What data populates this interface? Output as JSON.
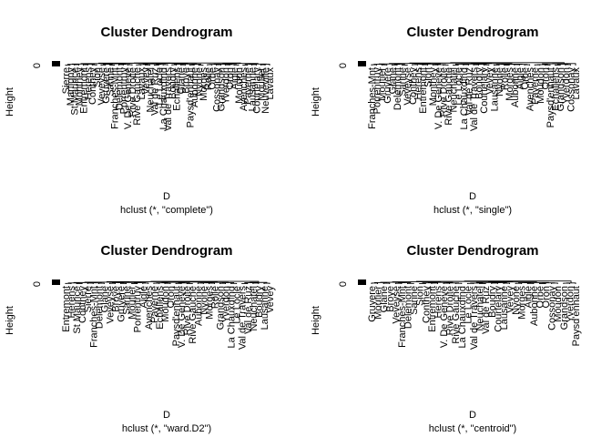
{
  "chart_data": [
    {
      "type": "dendrogram",
      "title": "Cluster Dendrogram",
      "xlabel": "D",
      "sub": "hclust (*, \"complete\")",
      "ylabel": "Height",
      "yticks": [
        "0"
      ],
      "labels": [
        "Sierre",
        "Martigny",
        "St Maurice",
        "Monthey",
        "Entremont",
        "Herens",
        "Conthey",
        "Sion",
        "Veveyse",
        "Gruyere",
        "Sarine",
        "Franches-Mnt",
        "Delemont",
        "Porrentruy",
        "V. De Geneve",
        "Rive Droite",
        "Rive Gauche",
        "Lavaux",
        "Vevey",
        "Neuchatel",
        "Val de Ruz",
        "Le Locle",
        "La Chauxdfnd",
        "Val de Travers",
        "Boudry",
        "Echallens",
        "Glane",
        "Broye",
        "Paysd'enhaut",
        "Aubonne",
        "Nyone",
        "Morges",
        "Rolle",
        "Orbe",
        "Cossonay",
        "Grandson",
        "Yverdon",
        "Oron",
        "Aigle",
        "Moudon",
        "Avenches",
        "Payerne",
        "Lausanne",
        "Courtelary",
        "Moutier",
        "Neuveville",
        "Lavaux"
      ]
    },
    {
      "type": "dendrogram",
      "title": "Cluster Dendrogram",
      "xlabel": "D",
      "sub": "hclust (*, \"single\")",
      "ylabel": "Height",
      "yticks": [
        "0"
      ],
      "labels": [
        "Franches-Mnt",
        "Porrentruy",
        "Moutier",
        "Gruyere",
        "Glane",
        "Delemont",
        "Sarine",
        "Veveyse",
        "Conthey",
        "Herens",
        "Entremont",
        "Sion",
        "Monthey",
        "V. De Geneve",
        "Rive Droite",
        "Rive Gauche",
        "Neuchatel",
        "Le Locle",
        "La Chauxdfnd",
        "Val de Ruz",
        "Val de Travers",
        "Boudry",
        "Courtelary",
        "Vevey",
        "Lausanne",
        "Nyone",
        "Rolle",
        "Morges",
        "Aubonne",
        "Aigle",
        "Orbe",
        "Avenches",
        "Payerne",
        "Moudon",
        "Oron",
        "Paysd'enhaut",
        "Echallens",
        "Grandson",
        "Yverdon",
        "Cossonay",
        "Lavaux"
      ]
    },
    {
      "type": "dendrogram",
      "title": "Cluster Dendrogram",
      "xlabel": "D",
      "sub": "hclust (*, \"ward.D2\")",
      "ylabel": "Height",
      "yticks": [
        "0"
      ],
      "labels": [
        "Entremont",
        "Herens",
        "St Maurice",
        "Conthey",
        "Sierre",
        "Franches-Mnt",
        "Delemont",
        "Glane",
        "Veveyse",
        "Broye",
        "Gruyere",
        "Sarine",
        "Moutier",
        "Porrentruy",
        "Aigle",
        "Avenches",
        "Payerne",
        "Echallens",
        "Moudon",
        "Oron",
        "Paysd'enhaut",
        "V. De Geneve",
        "Rive Droite",
        "Rive Gauche",
        "Aubonne",
        "Nyone",
        "Morges",
        "Rolle",
        "Grandson",
        "Yverdon",
        "La Chauxdfnd",
        "Le Locle",
        "Val de Travers",
        "Val de Ruz",
        "Neuchatel",
        "Boudry",
        "Lausanne",
        "Vevey"
      ]
    },
    {
      "type": "dendrogram",
      "title": "Cluster Dendrogram",
      "xlabel": "D",
      "sub": "hclust (*, \"centroid\")",
      "ylabel": "Height",
      "yticks": [
        "0"
      ],
      "labels": [
        "Gruyere",
        "Moutier",
        "Glane",
        "Broye",
        "Veveyse",
        "Franches-Mnt",
        "Delemont",
        "Sarine",
        "Sion",
        "Conthey",
        "Entremont",
        "Herens",
        "V. De Geneve",
        "Rive Droite",
        "Rive Gauche",
        "La Chauxdfnd",
        "Le Locle",
        "Val de Travers",
        "Neuchatel",
        "Val de Ruz",
        "Boudry",
        "Courtelary",
        "Lausanne",
        "Vevey",
        "Nyone",
        "Morges",
        "Aigle",
        "Aubonne",
        "Orbe",
        "Oron",
        "Cossonay",
        "Moudon",
        "Grandson",
        "Yverdon",
        "Paysd'enhaut"
      ]
    }
  ]
}
